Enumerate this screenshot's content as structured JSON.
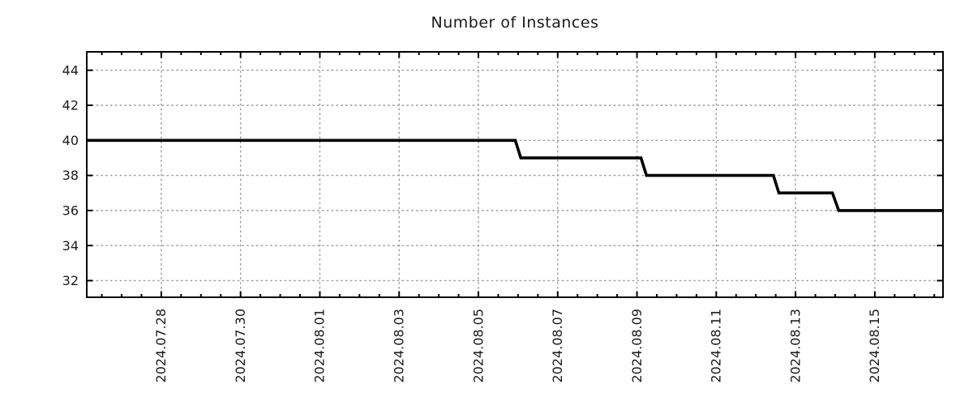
{
  "chart_data": {
    "type": "line",
    "style": "step",
    "title": "Number of Instances",
    "xlabel": "",
    "ylabel": "",
    "x_axis_note": "x encoded as days since 2024.07.28",
    "x_range": [
      -1.88,
      19.72
    ],
    "y_range": [
      31.05,
      45.05
    ],
    "x_ticks": [
      {
        "pos": 0,
        "label": "2024.07.28"
      },
      {
        "pos": 2,
        "label": "2024.07.30"
      },
      {
        "pos": 4,
        "label": "2024.08.01"
      },
      {
        "pos": 6,
        "label": "2024.08.03"
      },
      {
        "pos": 8,
        "label": "2024.08.05"
      },
      {
        "pos": 10,
        "label": "2024.08.07"
      },
      {
        "pos": 12,
        "label": "2024.08.09"
      },
      {
        "pos": 14,
        "label": "2024.08.11"
      },
      {
        "pos": 16,
        "label": "2024.08.13"
      },
      {
        "pos": 18,
        "label": "2024.08.15"
      }
    ],
    "x_minor_step": 0.5,
    "y_ticks": [
      32,
      34,
      36,
      38,
      40,
      42,
      44
    ],
    "grid": "dotted",
    "legend": "none",
    "series": [
      {
        "name": "instances",
        "color": "#000000",
        "points": [
          [
            -1.88,
            40
          ],
          [
            8.93,
            40
          ],
          [
            9.07,
            39
          ],
          [
            12.1,
            39
          ],
          [
            12.24,
            38
          ],
          [
            15.44,
            38
          ],
          [
            15.58,
            37
          ],
          [
            16.93,
            37
          ],
          [
            17.09,
            36
          ],
          [
            19.72,
            36
          ]
        ]
      }
    ],
    "colors": {
      "line": "#000000",
      "grid": "#9c9c9c",
      "axis": "#000000",
      "text": "#1c1c1c",
      "background": "#ffffff"
    }
  }
}
